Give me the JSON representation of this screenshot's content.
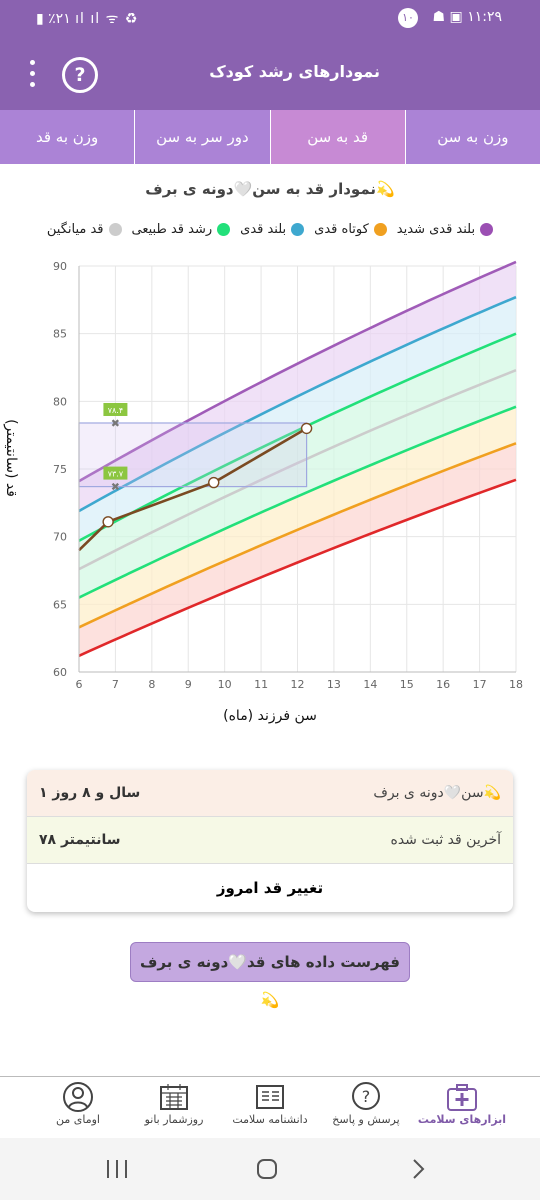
{
  "status": {
    "time": "۱۱:۲۹",
    "battery": "٪۲۱",
    "notif_count": "۱۰"
  },
  "appbar": {
    "title": "نمودارهای رشد کودک",
    "help": "?"
  },
  "tabs": [
    {
      "label": "وزن به سن",
      "active": false
    },
    {
      "label": "قد به سن",
      "active": true
    },
    {
      "label": "دور سر به سن",
      "active": false
    },
    {
      "label": "وزن به قد",
      "active": false
    }
  ],
  "chart_title": "نمودار قد به سن🤍دونه ی برف💫",
  "legend": [
    {
      "label": "بلند قدی شدید",
      "color": "#9b4fb3"
    },
    {
      "label": "کوتاه قدی",
      "color": "#f0a020"
    },
    {
      "label": "بلند قدی",
      "color": "#3ea8cf"
    },
    {
      "label": "رشد قد طبیعی",
      "color": "#22e07a"
    },
    {
      "label": "قد میانگین",
      "color": "#cccccc"
    }
  ],
  "chart_data": {
    "type": "line",
    "xlabel": "سن فرزند (ماه)",
    "ylabel": "قد (سانتیمتر)",
    "xlim": [
      6,
      18
    ],
    "ylim": [
      60,
      90
    ],
    "xticks": [
      6,
      7,
      8,
      9,
      10,
      11,
      12,
      13,
      14,
      15,
      16,
      17,
      18
    ],
    "yticks": [
      60,
      65,
      70,
      75,
      80,
      85,
      90
    ],
    "grid": true,
    "curves": [
      {
        "color": "#a05cb8",
        "x": [
          6,
          18
        ],
        "y": [
          74.1,
          90.3
        ],
        "curvature": 1.2
      },
      {
        "color": "#3ea8cf",
        "x": [
          6,
          18
        ],
        "y": [
          71.9,
          87.7
        ],
        "curvature": 1.2
      },
      {
        "color": "#22e07a",
        "x": [
          6,
          18
        ],
        "y": [
          69.7,
          85.0
        ],
        "curvature": 1.1
      },
      {
        "color": "#cccccc",
        "x": [
          6,
          18
        ],
        "y": [
          67.6,
          82.3
        ],
        "curvature": 1.1
      },
      {
        "color": "#22e07a",
        "x": [
          6,
          18
        ],
        "y": [
          65.5,
          79.6
        ],
        "curvature": 1.0
      },
      {
        "color": "#f0a020",
        "x": [
          6,
          18
        ],
        "y": [
          63.3,
          76.9
        ],
        "curvature": 1.0
      },
      {
        "color": "#e0282a",
        "x": [
          6,
          18
        ],
        "y": [
          61.2,
          74.2
        ],
        "curvature": 1.0
      }
    ],
    "bands": [
      {
        "color": "#e9d4f4",
        "from": 0,
        "to": 1
      },
      {
        "color": "#d7eef8",
        "from": 1,
        "to": 2
      },
      {
        "color": "#d2f8e2",
        "from": 2,
        "to": 4
      },
      {
        "color": "#fdeec8",
        "from": 4,
        "to": 5
      },
      {
        "color": "#fcd4d0",
        "from": 5,
        "to": 6
      }
    ],
    "child": {
      "color": "#7a4a22",
      "x": [
        6,
        6.8,
        9.7,
        12.25
      ],
      "y": [
        69.0,
        71.1,
        74.0,
        78.0
      ]
    },
    "child_markers": [
      0,
      1,
      2,
      3
    ],
    "range_box": {
      "x": [
        6,
        12.25
      ],
      "y": [
        73.7,
        78.4
      ],
      "color": "#a0a8e0"
    },
    "range_markers": [
      {
        "x": 7,
        "y": 78.4,
        "label": "۷۸.۴"
      },
      {
        "x": 7,
        "y": 73.7,
        "label": "۷۳.۷"
      }
    ]
  },
  "card": {
    "age_label": "سن🤍دونه ی برف💫",
    "age_value": "۱ سال و ۸ روز",
    "height_label": "آخرین قد ثبت شده",
    "height_value": "۷۸ سانتیمتر",
    "change_label": "تغییر قد امروز"
  },
  "list_button": "فهرست داده های قد🤍دونه ی برف💫",
  "bottom_nav": [
    {
      "label": "ابزارهای سلامت",
      "icon": "medical-kit-icon",
      "active": true
    },
    {
      "label": "پرسش و پاسخ",
      "icon": "question-bubble-icon",
      "active": false
    },
    {
      "label": "دانشنامه سلامت",
      "icon": "encyclopedia-icon",
      "active": false
    },
    {
      "label": "روزشمار بانو",
      "icon": "calendar-icon",
      "active": false
    },
    {
      "label": "اومای من",
      "icon": "profile-icon",
      "active": false
    }
  ]
}
